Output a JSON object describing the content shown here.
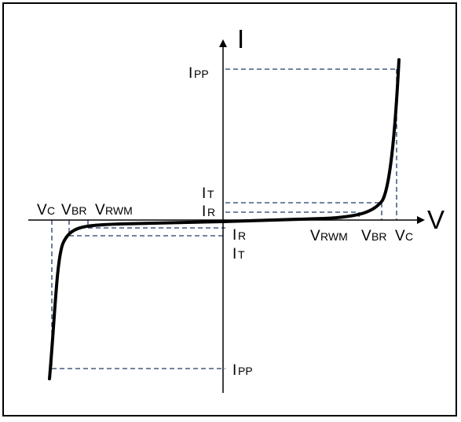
{
  "axes": {
    "y_label": "I",
    "x_label": "V"
  },
  "labels": {
    "ipp": "I",
    "ipp_sub": "PP",
    "it": "I",
    "it_sub": "T",
    "ir": "I",
    "ir_sub": "R",
    "vc": "V",
    "vc_sub": "C",
    "vbr": "V",
    "vbr_sub": "BR",
    "vrwm": "V",
    "vrwm_sub": "RWM"
  },
  "style": {
    "curve_color": "#000000",
    "guide_color": "#1f3a68"
  }
}
